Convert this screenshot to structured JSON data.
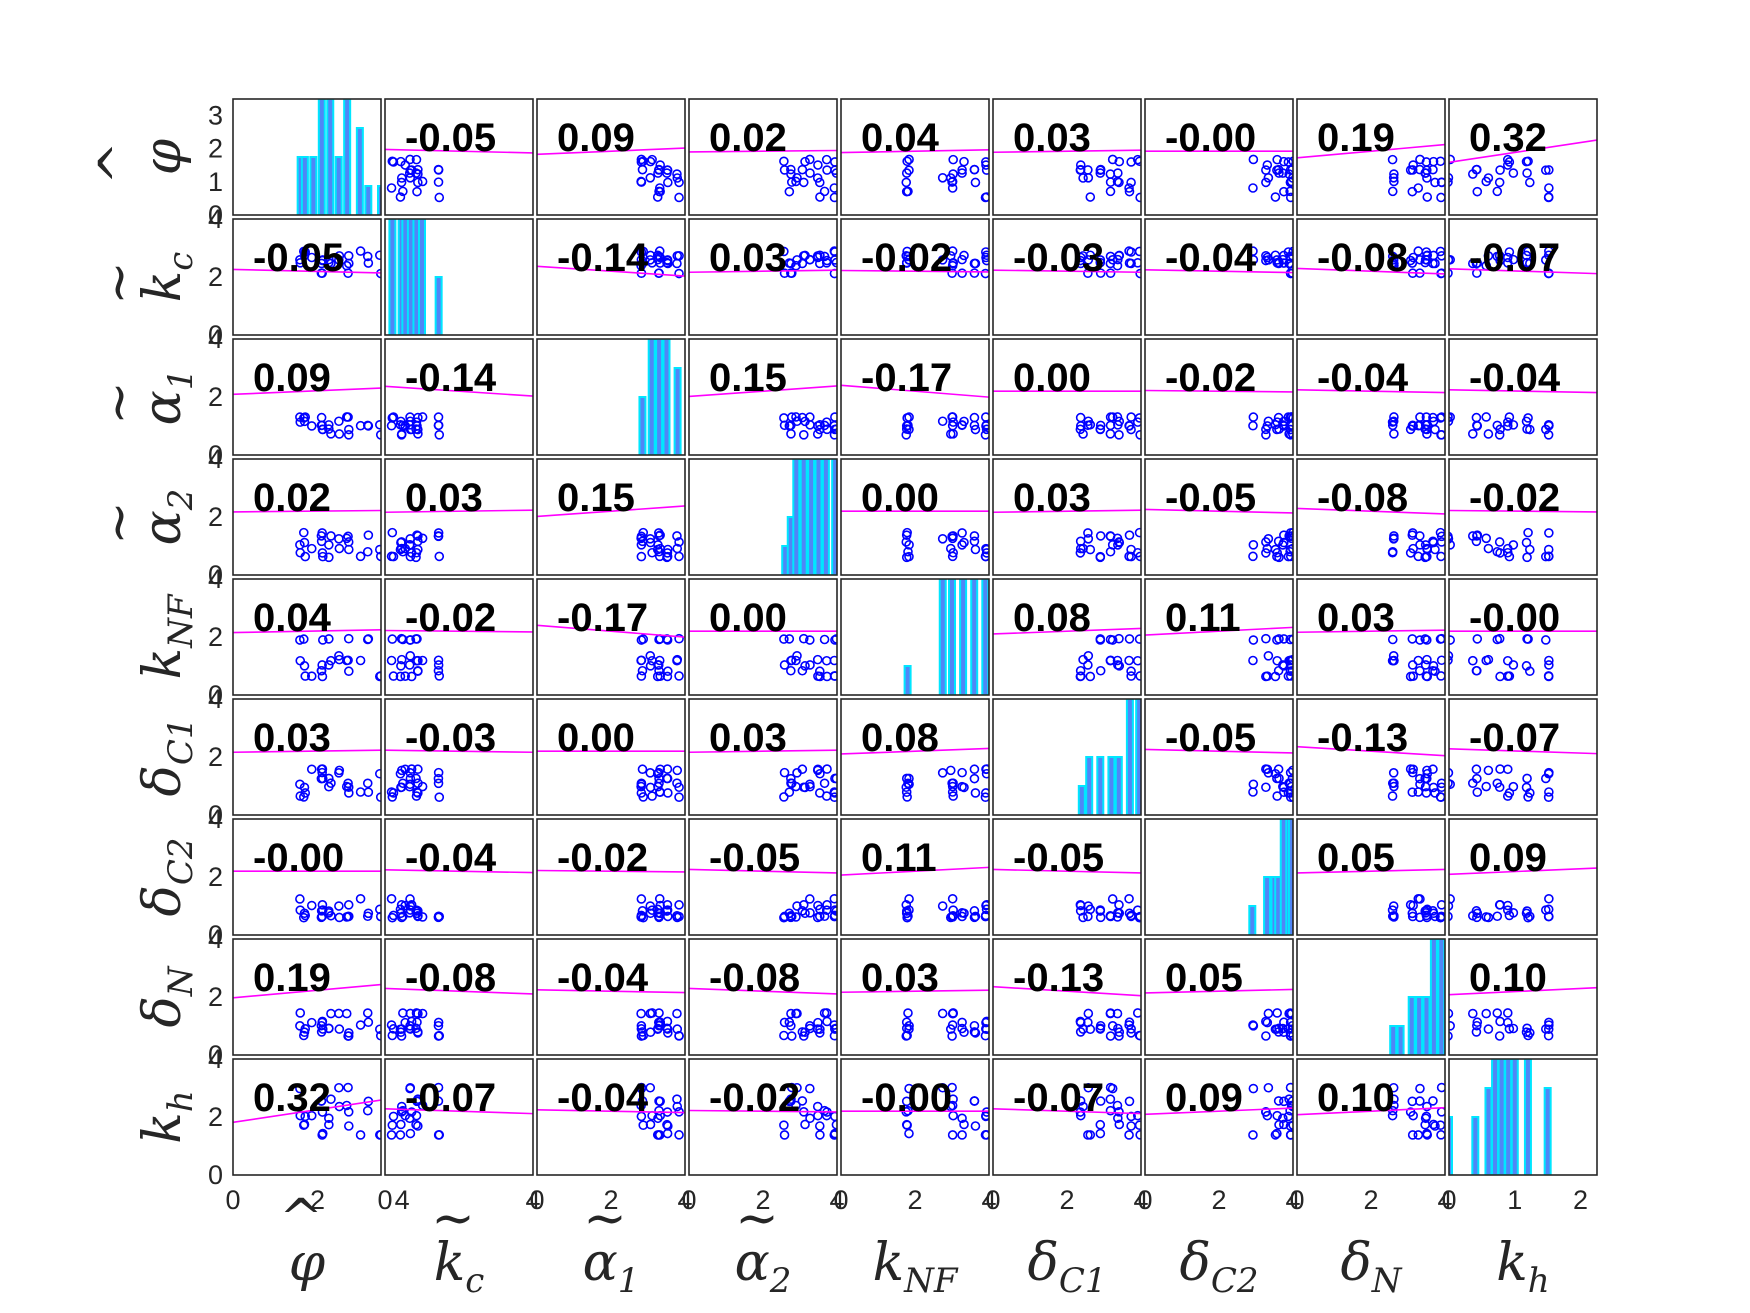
{
  "chart_data": {
    "type": "scatter-matrix",
    "variables": [
      {
        "label": "φ̂",
        "base": "φ",
        "accent": "hat",
        "sub": ""
      },
      {
        "label": "k̃c",
        "base": "k",
        "accent": "tilde",
        "sub": "c"
      },
      {
        "label": "α̃1",
        "base": "α",
        "accent": "tilde",
        "sub": "1"
      },
      {
        "label": "α̃2",
        "base": "α",
        "accent": "tilde",
        "sub": "2"
      },
      {
        "label": "kNF",
        "base": "k",
        "accent": "",
        "sub": "NF"
      },
      {
        "label": "δC1",
        "base": "δ",
        "accent": "",
        "sub": "C1"
      },
      {
        "label": "δC2",
        "base": "δ",
        "accent": "",
        "sub": "C2"
      },
      {
        "label": "δN",
        "base": "δ",
        "accent": "",
        "sub": "N"
      },
      {
        "label": "kh",
        "base": "k",
        "accent": "",
        "sub": "h"
      }
    ],
    "correlations": [
      [
        null,
        "-0.05",
        "0.09",
        "0.02",
        "0.04",
        "0.03",
        "-0.00",
        "0.19",
        "0.32"
      ],
      [
        "-0.05",
        null,
        "-0.14",
        "0.03",
        "-0.02",
        "-0.03",
        "-0.04",
        "-0.08",
        "-0.07"
      ],
      [
        "0.09",
        "-0.14",
        null,
        "0.15",
        "-0.17",
        "0.00",
        "-0.02",
        "-0.04",
        "-0.04"
      ],
      [
        "0.02",
        "0.03",
        "0.15",
        null,
        "0.00",
        "0.03",
        "-0.05",
        "-0.08",
        "-0.02"
      ],
      [
        "0.04",
        "-0.02",
        "-0.17",
        "0.00",
        null,
        "0.08",
        "0.11",
        "0.03",
        "-0.00"
      ],
      [
        "0.03",
        "-0.03",
        "0.00",
        "0.03",
        "0.08",
        null,
        "-0.05",
        "-0.13",
        "-0.07"
      ],
      [
        "-0.00",
        "-0.04",
        "-0.02",
        "-0.05",
        "0.11",
        "-0.05",
        null,
        "0.05",
        "0.09"
      ],
      [
        "0.19",
        "-0.08",
        "-0.04",
        "-0.08",
        "0.03",
        "-0.13",
        "0.05",
        null,
        "0.10"
      ],
      [
        "0.32",
        "-0.07",
        "-0.04",
        "-0.02",
        "-0.00",
        "-0.07",
        "0.09",
        "0.10",
        null
      ]
    ],
    "diagonal": "histogram",
    "histograms": [
      {
        "bins": [
          1.6,
          1.7,
          1.9,
          2.1,
          2.3,
          2.5,
          2.7,
          3.0,
          3.2,
          3.5
        ],
        "counts": [
          2,
          2,
          2,
          4,
          4,
          2,
          4,
          3,
          1,
          1
        ]
      },
      {
        "bins": [
          0.2,
          0.45,
          0.55,
          0.7,
          0.85,
          1.0,
          1.45
        ],
        "counts": [
          4,
          4,
          4,
          4,
          4,
          4,
          2
        ]
      },
      {
        "bins": [
          2.85,
          3.1,
          3.3,
          3.5,
          3.8
        ],
        "counts": [
          2,
          4,
          4,
          4,
          3
        ]
      },
      {
        "bins": [
          2.6,
          2.75,
          2.9,
          3.1,
          3.3,
          3.5,
          3.7,
          3.95
        ],
        "counts": [
          1,
          2,
          4,
          4,
          4,
          4,
          4,
          4
        ]
      },
      {
        "bins": [
          1.8,
          2.75,
          3.0,
          3.3,
          3.6,
          3.9
        ],
        "counts": [
          1,
          4,
          4,
          4,
          4,
          4
        ]
      },
      {
        "bins": [
          2.4,
          2.6,
          2.9,
          3.2,
          3.4,
          3.7,
          3.95
        ],
        "counts": [
          1,
          2,
          2,
          2,
          2,
          4,
          4
        ]
      },
      {
        "bins": [
          2.9,
          3.3,
          3.5,
          3.6,
          3.75,
          3.9,
          3.97
        ],
        "counts": [
          1,
          2,
          2,
          2,
          4,
          4,
          4
        ]
      },
      {
        "bins": [
          2.6,
          2.8,
          3.1,
          3.3,
          3.5,
          3.7,
          3.9
        ],
        "counts": [
          1,
          1,
          2,
          2,
          2,
          4,
          4
        ]
      },
      {
        "bins": [
          0.0,
          0.4,
          0.6,
          0.7,
          0.8,
          0.9,
          1.0,
          1.2,
          1.5
        ],
        "counts": [
          2,
          2,
          3,
          4,
          4,
          4,
          4,
          4,
          3
        ]
      }
    ],
    "axis_ranges": [
      [
        0,
        3.5
      ],
      [
        0,
        4
      ],
      [
        0,
        4
      ],
      [
        0,
        4
      ],
      [
        0,
        4
      ],
      [
        0,
        4
      ],
      [
        0,
        4
      ],
      [
        0,
        4
      ],
      [
        0,
        2.25
      ]
    ],
    "y_axis_ticks": {
      "row1": [
        "0",
        "1",
        "2",
        "3"
      ],
      "other_rows": [
        "0",
        "2",
        "4"
      ]
    },
    "x_axis_ticks": [
      [
        "0",
        "2",
        "4"
      ],
      [
        "0",
        "4"
      ],
      [
        "0",
        "2",
        "4"
      ],
      [
        "0",
        "2",
        "4"
      ],
      [
        "0",
        "2",
        "4"
      ],
      [
        "0",
        "2",
        "4"
      ],
      [
        "0",
        "2",
        "4"
      ],
      [
        "0",
        "2",
        "4"
      ],
      [
        "0",
        "1",
        "2"
      ]
    ],
    "bottom_row_y_ticks": [
      "0",
      "2",
      "4"
    ],
    "grid": false,
    "legend": "none"
  },
  "colors": {
    "scatter_marker": "#0000ff",
    "fit_line": "#ff00ff",
    "hist_fill": "#4f86f7",
    "hist_edge": "#00e6ff",
    "axes": "#262626",
    "corr_text": "#000000"
  }
}
